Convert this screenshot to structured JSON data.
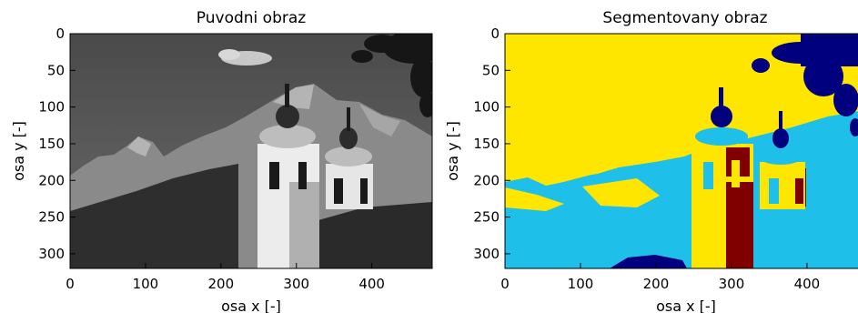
{
  "chart_data": [
    {
      "type": "image",
      "title": "Puvodni obraz",
      "xlabel": "osa x [-]",
      "ylabel": "osa y [-]",
      "xlim": [
        0,
        480
      ],
      "ylim": [
        320,
        0
      ],
      "xticks": [
        0,
        100,
        200,
        300,
        400
      ],
      "yticks": [
        0,
        50,
        100,
        150,
        200,
        250,
        300
      ],
      "grid": false,
      "colormap": "grayscale",
      "colors": [
        "#585858",
        "#8a8a8a",
        "#c8c8c8",
        "#2e2e2e",
        "#ececec",
        "#161616"
      ]
    },
    {
      "type": "image",
      "title": "Segmentovany obraz",
      "xlabel": "osa x [-]",
      "ylabel": "osa y [-]",
      "xlim": [
        0,
        480
      ],
      "ylim": [
        320,
        0
      ],
      "xticks": [
        0,
        100,
        200,
        300,
        400
      ],
      "yticks": [
        0,
        50,
        100,
        150,
        200,
        250,
        300
      ],
      "grid": false,
      "colormap": "segmentation classes",
      "colors": [
        "#ffe600",
        "#1ec0ea",
        "#00007f",
        "#800000"
      ]
    }
  ]
}
